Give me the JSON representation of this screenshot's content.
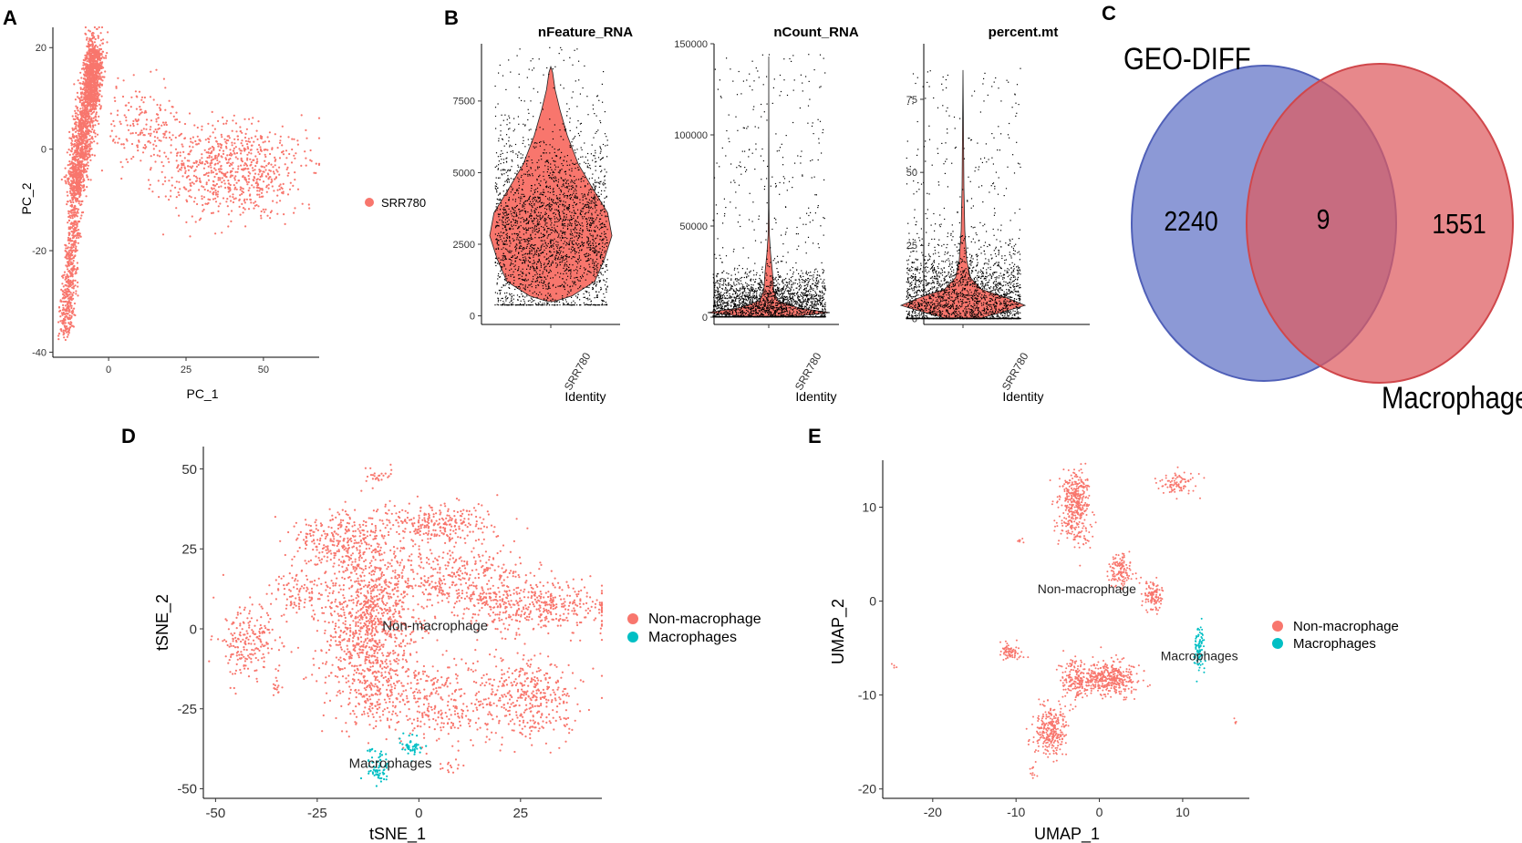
{
  "colors": {
    "salmon": "#F8766D",
    "teal": "#00BFC4",
    "venn_left": "#6B7CCB",
    "venn_right": "#DE5A5E",
    "axis": "#000000"
  },
  "panel_labels": [
    "A",
    "B",
    "C",
    "D",
    "E"
  ],
  "chart_data": [
    {
      "id": "A",
      "type": "scatter",
      "title": "",
      "xlabel": "PC_1",
      "ylabel": "PC_2",
      "xlim": [
        -18,
        68
      ],
      "ylim": [
        -41,
        24
      ],
      "xticks": [
        0,
        25,
        50
      ],
      "yticks": [
        20,
        0,
        -20,
        -40
      ],
      "legend": [
        {
          "label": "SRR780",
          "color": "#F8766D"
        }
      ],
      "clusters": [
        {
          "shape": "line",
          "from": [
            -4,
            20
          ],
          "to": [
            -11,
            -8
          ],
          "spread": 1.6,
          "n": 1400,
          "color": "#F8766D"
        },
        {
          "shape": "line",
          "from": [
            -10,
            -4
          ],
          "to": [
            -14,
            -36
          ],
          "spread": 1.2,
          "n": 650,
          "color": "#F8766D"
        },
        {
          "shape": "blob",
          "center": [
            -5,
            14
          ],
          "sd": [
            1.4,
            4
          ],
          "n": 350,
          "color": "#F8766D"
        },
        {
          "shape": "blob",
          "center": [
            40,
            -4
          ],
          "sd": [
            11,
            4.5
          ],
          "n": 750,
          "color": "#F8766D"
        },
        {
          "shape": "blob",
          "center": [
            12,
            5
          ],
          "sd": [
            6,
            4
          ],
          "n": 180,
          "color": "#F8766D"
        }
      ]
    },
    {
      "id": "B1",
      "type": "violin",
      "title": "nFeature_RNA",
      "category": "SRR780",
      "xlabel": "Identity",
      "ylim": [
        -300,
        9500
      ],
      "yticks": [
        0,
        2500,
        5000,
        7500
      ],
      "profile": [
        [
          500,
          0.05
        ],
        [
          700,
          0.35
        ],
        [
          1200,
          0.72
        ],
        [
          2000,
          0.88
        ],
        [
          2800,
          1.0
        ],
        [
          3600,
          0.93
        ],
        [
          4400,
          0.7
        ],
        [
          5300,
          0.45
        ],
        [
          6300,
          0.27
        ],
        [
          7200,
          0.15
        ],
        [
          7900,
          0.07
        ],
        [
          8500,
          0.03
        ],
        [
          8700,
          0.0
        ]
      ],
      "points": {
        "n": 2600,
        "lo": 400,
        "hi": 9400,
        "mode": 3000,
        "sd": 1600
      }
    },
    {
      "id": "B2",
      "type": "violin",
      "title": "nCount_RNA",
      "category": "SRR780",
      "xlabel": "Identity",
      "ylim": [
        -4000,
        150000
      ],
      "yticks": [
        0,
        50000,
        100000,
        150000
      ],
      "profile": [
        [
          500,
          0.45
        ],
        [
          2500,
          1.0
        ],
        [
          5000,
          0.5
        ],
        [
          9000,
          0.15
        ],
        [
          15000,
          0.08
        ],
        [
          25000,
          0.06
        ],
        [
          35000,
          0.03
        ],
        [
          45000,
          0.01
        ],
        [
          60000,
          0.004
        ],
        [
          100000,
          0.002
        ],
        [
          143000,
          0.0
        ]
      ],
      "points": {
        "n": 2600,
        "lo": 500,
        "hi": 145000,
        "mode": 6000,
        "sd": 9000
      }
    },
    {
      "id": "B3",
      "type": "violin",
      "title": "percent.mt",
      "category": "SRR780",
      "xlabel": "Identity",
      "ylim": [
        -2,
        94
      ],
      "yticks": [
        0,
        25,
        50,
        75
      ],
      "profile": [
        [
          0.2,
          0.3
        ],
        [
          2,
          0.6
        ],
        [
          4.5,
          1.0
        ],
        [
          7,
          0.72
        ],
        [
          10,
          0.3
        ],
        [
          14,
          0.12
        ],
        [
          20,
          0.06
        ],
        [
          30,
          0.03
        ],
        [
          45,
          0.015
        ],
        [
          65,
          0.007
        ],
        [
          85,
          0.0
        ]
      ],
      "points": {
        "n": 2600,
        "lo": 0.2,
        "hi": 86,
        "mode": 6,
        "sd": 9
      }
    },
    {
      "id": "C",
      "type": "venn",
      "sets": [
        {
          "name": "GEO-DIFF",
          "only": 2240,
          "color": "#6B7CCB"
        },
        {
          "name": "Macrophage",
          "only": 1551,
          "color": "#DE5A5E"
        }
      ],
      "intersection": 9
    },
    {
      "id": "D",
      "type": "scatter",
      "xlabel": "tSNE_1",
      "ylabel": "tSNE_2",
      "xlim": [
        -53,
        45
      ],
      "ylim": [
        -53,
        57
      ],
      "xticks": [
        -50,
        -25,
        0,
        25
      ],
      "yticks": [
        50,
        25,
        0,
        -25,
        -50
      ],
      "legend": [
        {
          "label": "Non-macrophage",
          "color": "#F8766D"
        },
        {
          "label": "Macrophages",
          "color": "#00BFC4"
        }
      ],
      "annotations": [
        {
          "text": "Non-macrophage",
          "x": 4,
          "y": 1
        },
        {
          "text": "Macrophages",
          "x": -7,
          "y": -42
        }
      ],
      "clusters": [
        {
          "center": [
            -12,
            3
          ],
          "sd": [
            6,
            13
          ],
          "n": 1100,
          "color": "#F8766D"
        },
        {
          "center": [
            -20,
            28
          ],
          "sd": [
            6,
            4
          ],
          "n": 260,
          "color": "#F8766D"
        },
        {
          "center": [
            5,
            33
          ],
          "sd": [
            7,
            3
          ],
          "n": 260,
          "color": "#F8766D"
        },
        {
          "center": [
            9,
            16
          ],
          "sd": [
            9,
            5
          ],
          "n": 330,
          "color": "#F8766D"
        },
        {
          "center": [
            28,
            7
          ],
          "sd": [
            10,
            4
          ],
          "n": 430,
          "color": "#F8766D"
        },
        {
          "center": [
            -42,
            -5
          ],
          "sd": [
            3.5,
            6
          ],
          "n": 210,
          "color": "#F8766D"
        },
        {
          "center": [
            -30,
            12
          ],
          "sd": [
            3,
            4
          ],
          "n": 90,
          "color": "#F8766D"
        },
        {
          "center": [
            26,
            -22
          ],
          "sd": [
            6.5,
            7
          ],
          "n": 420,
          "color": "#F8766D"
        },
        {
          "center": [
            5,
            -23
          ],
          "sd": [
            4,
            6
          ],
          "n": 210,
          "color": "#F8766D"
        },
        {
          "center": [
            -10,
            -22
          ],
          "sd": [
            4,
            5
          ],
          "n": 160,
          "color": "#F8766D"
        },
        {
          "center": [
            -10,
            48
          ],
          "sd": [
            1.5,
            1
          ],
          "n": 25,
          "color": "#F8766D"
        },
        {
          "center": [
            8,
            -43
          ],
          "sd": [
            1.2,
            1
          ],
          "n": 14,
          "color": "#F8766D"
        },
        {
          "center": [
            -35,
            -19
          ],
          "sd": [
            0.8,
            1.5
          ],
          "n": 14,
          "color": "#F8766D"
        },
        {
          "center": [
            -10,
            -43
          ],
          "sd": [
            1.5,
            2.5
          ],
          "n": 70,
          "color": "#00BFC4"
        },
        {
          "center": [
            -2,
            -37
          ],
          "sd": [
            1.5,
            1.6
          ],
          "n": 45,
          "color": "#00BFC4"
        }
      ]
    },
    {
      "id": "E",
      "type": "scatter",
      "xlabel": "UMAP_1",
      "ylabel": "UMAP_2",
      "xlim": [
        -26,
        18
      ],
      "ylim": [
        -21,
        15
      ],
      "xticks": [
        -20,
        -10,
        0,
        10
      ],
      "yticks": [
        10,
        0,
        -10,
        -20
      ],
      "legend": [
        {
          "label": "Non-macrophage",
          "color": "#F8766D"
        },
        {
          "label": "Macrophages",
          "color": "#00BFC4"
        }
      ],
      "annotations": [
        {
          "text": "Non-macrophage",
          "x": -1.5,
          "y": 1.3
        },
        {
          "text": "Macrophages",
          "x": 12,
          "y": -5.8
        }
      ],
      "clusters": [
        {
          "center": [
            -3,
            11
          ],
          "sd": [
            0.9,
            1.5
          ],
          "n": 300,
          "color": "#F8766D"
        },
        {
          "center": [
            -3,
            8
          ],
          "sd": [
            1.0,
            1.2
          ],
          "n": 120,
          "color": "#F8766D"
        },
        {
          "center": [
            9.5,
            12.5
          ],
          "sd": [
            1.1,
            0.6
          ],
          "n": 90,
          "color": "#F8766D"
        },
        {
          "center": [
            2.5,
            3
          ],
          "sd": [
            0.7,
            0.9
          ],
          "n": 130,
          "color": "#F8766D"
        },
        {
          "center": [
            6.5,
            0.5
          ],
          "sd": [
            0.6,
            0.9
          ],
          "n": 110,
          "color": "#F8766D"
        },
        {
          "center": [
            1,
            -8.3
          ],
          "sd": [
            1.7,
            0.9
          ],
          "n": 420,
          "color": "#F8766D"
        },
        {
          "center": [
            -3,
            -8.5
          ],
          "sd": [
            0.9,
            1.1
          ],
          "n": 160,
          "color": "#F8766D"
        },
        {
          "center": [
            -5.8,
            -13.8
          ],
          "sd": [
            1.0,
            1.3
          ],
          "n": 280,
          "color": "#F8766D"
        },
        {
          "center": [
            -10.7,
            -5.5
          ],
          "sd": [
            0.7,
            0.5
          ],
          "n": 70,
          "color": "#F8766D"
        },
        {
          "center": [
            -9.5,
            6.5
          ],
          "sd": [
            0.2,
            0.2
          ],
          "n": 6,
          "color": "#F8766D"
        },
        {
          "center": [
            -24.5,
            -6.8
          ],
          "sd": [
            0.2,
            0.2
          ],
          "n": 4,
          "color": "#F8766D"
        },
        {
          "center": [
            16.5,
            -13
          ],
          "sd": [
            0.2,
            0.2
          ],
          "n": 4,
          "color": "#F8766D"
        },
        {
          "center": [
            -8,
            -18.3
          ],
          "sd": [
            0.3,
            0.6
          ],
          "n": 12,
          "color": "#F8766D"
        },
        {
          "center": [
            12,
            -5.2
          ],
          "sd": [
            0.35,
            1.1
          ],
          "n": 90,
          "color": "#00BFC4"
        }
      ]
    }
  ]
}
